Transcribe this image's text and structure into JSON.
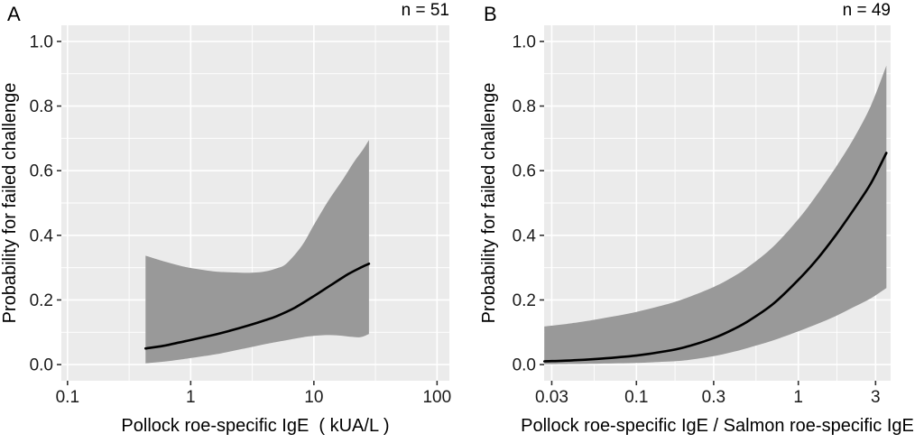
{
  "figure": {
    "background_color": "#ffffff",
    "panel_background_color": "#ebebeb",
    "grid_color": "#ffffff",
    "band_color": "#999999",
    "line_color": "#000000",
    "tick_color": "#333333"
  },
  "chart_data": [
    {
      "type": "line",
      "title": "A",
      "annotation": "n = 51",
      "xlabel": "Pollock roe-specific IgE  ( kUA/L )",
      "ylabel": "Probability for failed challenge",
      "x_scale": "log10",
      "grid": true,
      "legend": "none",
      "x_ticks": [
        0.1,
        1,
        10,
        100
      ],
      "x_tick_labels": [
        "0.1",
        "1",
        "10",
        "100"
      ],
      "xlim_log": [
        -1.05,
        2.1
      ],
      "y_ticks": [
        0.0,
        0.2,
        0.4,
        0.6,
        0.8,
        1.0
      ],
      "y_tick_labels": [
        "0.0",
        "0.2",
        "0.4",
        "0.6",
        "0.8",
        "1.0"
      ],
      "ylim": [
        -0.05,
        1.05
      ],
      "series": [
        {
          "name": "fitted probability",
          "x": [
            0.43,
            0.6,
            0.8,
            1,
            1.5,
            2,
            3,
            4,
            5,
            7,
            10,
            14,
            19,
            24,
            28
          ],
          "y": [
            0.05,
            0.058,
            0.068,
            0.076,
            0.091,
            0.103,
            0.122,
            0.137,
            0.15,
            0.176,
            0.212,
            0.248,
            0.28,
            0.3,
            0.312
          ]
        },
        {
          "name": "95% CI upper",
          "x": [
            0.43,
            0.6,
            0.8,
            1,
            1.5,
            2,
            3,
            4,
            5,
            6,
            8,
            10,
            13,
            17,
            21,
            25,
            28
          ],
          "y": [
            0.337,
            0.32,
            0.307,
            0.299,
            0.289,
            0.286,
            0.284,
            0.288,
            0.298,
            0.313,
            0.368,
            0.432,
            0.505,
            0.57,
            0.625,
            0.665,
            0.695
          ]
        },
        {
          "name": "95% CI lower",
          "x": [
            0.43,
            0.6,
            0.8,
            1,
            1.5,
            2,
            3,
            4,
            5,
            7,
            9,
            12,
            16,
            20,
            24,
            28
          ],
          "y": [
            0.004,
            0.009,
            0.015,
            0.02,
            0.03,
            0.039,
            0.053,
            0.063,
            0.07,
            0.08,
            0.087,
            0.091,
            0.09,
            0.086,
            0.085,
            0.095
          ]
        }
      ]
    },
    {
      "type": "line",
      "title": "B",
      "annotation": "n = 49",
      "xlabel": "Pollock roe-specific IgE / Salmon roe-specific IgE",
      "ylabel": "Probability for failed challenge",
      "x_scale": "log10",
      "grid": true,
      "legend": "none",
      "x_ticks": [
        0.03,
        0.1,
        0.3,
        1,
        3
      ],
      "x_tick_labels": [
        "0.03",
        "0.1",
        "0.3",
        "1",
        "3"
      ],
      "xlim_log": [
        -1.57,
        0.57
      ],
      "y_ticks": [
        0.0,
        0.2,
        0.4,
        0.6,
        0.8,
        1.0
      ],
      "y_tick_labels": [
        "0.0",
        "0.2",
        "0.4",
        "0.6",
        "0.8",
        "1.0"
      ],
      "ylim": [
        -0.05,
        1.05
      ],
      "series": [
        {
          "name": "fitted probability",
          "x": [
            0.027,
            0.04,
            0.06,
            0.1,
            0.15,
            0.2,
            0.3,
            0.4,
            0.5,
            0.7,
            1,
            1.3,
            1.7,
            2.2,
            2.8,
            3.5
          ],
          "y": [
            0.01,
            0.013,
            0.018,
            0.028,
            0.041,
            0.054,
            0.082,
            0.11,
            0.137,
            0.188,
            0.262,
            0.325,
            0.4,
            0.48,
            0.56,
            0.655
          ]
        },
        {
          "name": "95% CI upper",
          "x": [
            0.027,
            0.04,
            0.06,
            0.1,
            0.15,
            0.2,
            0.3,
            0.4,
            0.5,
            0.7,
            1,
            1.3,
            1.7,
            2.2,
            2.8,
            3.5
          ],
          "y": [
            0.118,
            0.128,
            0.142,
            0.163,
            0.185,
            0.205,
            0.24,
            0.273,
            0.305,
            0.365,
            0.45,
            0.525,
            0.61,
            0.7,
            0.8,
            0.925
          ]
        },
        {
          "name": "95% CI lower",
          "x": [
            0.027,
            0.04,
            0.06,
            0.1,
            0.15,
            0.2,
            0.3,
            0.4,
            0.5,
            0.7,
            1,
            1.3,
            1.7,
            2.2,
            2.8,
            3.5
          ],
          "y": [
            0.001,
            0.002,
            0.003,
            0.005,
            0.009,
            0.013,
            0.026,
            0.04,
            0.053,
            0.075,
            0.103,
            0.125,
            0.15,
            0.178,
            0.205,
            0.237
          ]
        }
      ]
    }
  ]
}
